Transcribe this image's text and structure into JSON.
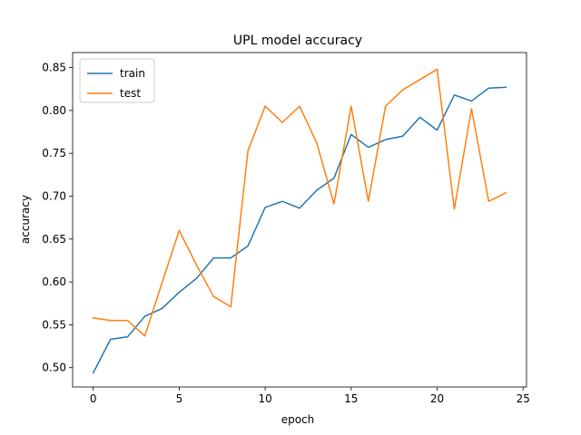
{
  "chart_data": {
    "type": "line",
    "title": "UPL model accuracy",
    "xlabel": "epoch",
    "ylabel": "accuracy",
    "xlim": [
      -1.2,
      25.2
    ],
    "ylim": [
      0.4775,
      0.8675
    ],
    "xticks": [
      0,
      5,
      10,
      15,
      20,
      25
    ],
    "xtick_labels": [
      "0",
      "5",
      "10",
      "15",
      "20",
      "25"
    ],
    "yticks": [
      0.5,
      0.55,
      0.6,
      0.65,
      0.7,
      0.75,
      0.8,
      0.85
    ],
    "ytick_labels": [
      "0.50",
      "0.55",
      "0.60",
      "0.65",
      "0.70",
      "0.75",
      "0.80",
      "0.85"
    ],
    "grid": false,
    "legend_position": "top-left",
    "x": [
      0,
      1,
      2,
      3,
      4,
      5,
      6,
      7,
      8,
      9,
      10,
      11,
      12,
      13,
      14,
      15,
      16,
      17,
      18,
      19,
      20,
      21,
      22,
      23,
      24
    ],
    "series": [
      {
        "name": "train",
        "color": "#1f77b4",
        "values": [
          0.494,
          0.533,
          0.536,
          0.56,
          0.569,
          0.588,
          0.604,
          0.628,
          0.628,
          0.642,
          0.687,
          0.694,
          0.686,
          0.707,
          0.721,
          0.772,
          0.757,
          0.766,
          0.77,
          0.792,
          0.777,
          0.818,
          0.811,
          0.826,
          0.827
        ]
      },
      {
        "name": "test",
        "color": "#ff7f0e",
        "values": [
          0.558,
          0.555,
          0.555,
          0.537,
          0.599,
          0.66,
          0.62,
          0.583,
          0.571,
          0.753,
          0.805,
          0.786,
          0.805,
          0.762,
          0.691,
          0.805,
          0.694,
          0.805,
          0.824,
          0.836,
          0.848,
          0.685,
          0.802,
          0.694,
          0.704
        ]
      }
    ]
  }
}
